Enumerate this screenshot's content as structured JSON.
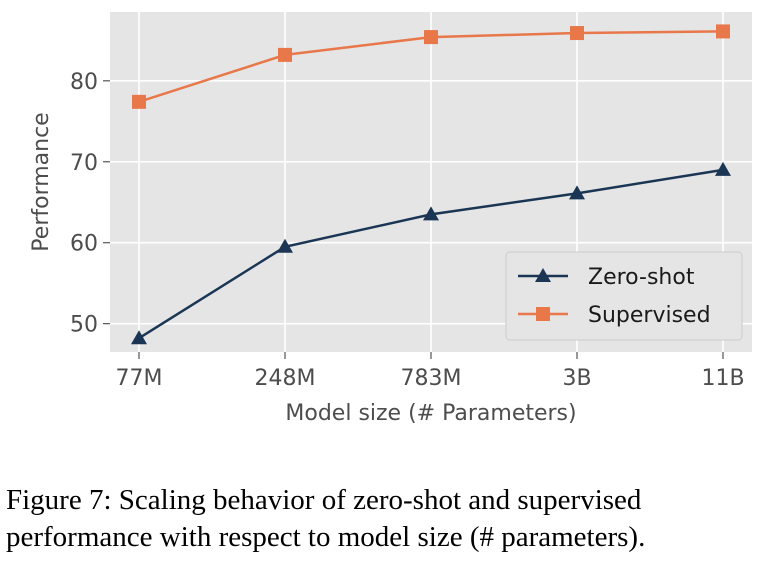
{
  "chart_data": {
    "type": "line",
    "title": "",
    "xlabel": "Model size (# Parameters)",
    "ylabel": "Performance",
    "categories": [
      "77M",
      "248M",
      "783M",
      "3B",
      "11B"
    ],
    "ylim": [
      46.5,
      88.5
    ],
    "yticks": [
      50,
      60,
      70,
      80
    ],
    "grid": true,
    "legend_position": "lower-right",
    "series": [
      {
        "name": "Zero-shot",
        "marker": "triangle",
        "color": "#1b3654",
        "values": [
          48.2,
          59.5,
          63.5,
          66.1,
          69.0
        ]
      },
      {
        "name": "Supervised",
        "marker": "square",
        "color": "#e8774a",
        "values": [
          77.4,
          83.2,
          85.4,
          85.9,
          86.1
        ]
      }
    ]
  },
  "caption": "Figure 7: Scaling behavior of zero-shot and supervised performance with respect to model size (# parameters)."
}
